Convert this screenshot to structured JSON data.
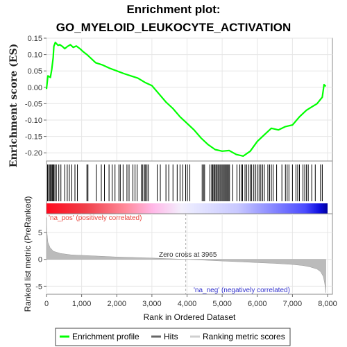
{
  "chart_data": {
    "type": "line",
    "title_line1": "Enrichment plot:",
    "title_line2": "GO_MYELOID_LEUKOCYTE_ACTIVATION",
    "xlabel": "Rank in Ordered Dataset",
    "ylabel_top": "Enrichment score (ES)",
    "ylabel_bottom": "Ranked list metric (PreRanked)",
    "xlim": [
      0,
      8000
    ],
    "ylim_top": [
      -0.225,
      0.15
    ],
    "ylim_bottom": [
      -6.5,
      8.5
    ],
    "x_ticks": [
      "0",
      "1,000",
      "2,000",
      "3,000",
      "4,000",
      "5,000",
      "6,000",
      "7,000",
      "8,000"
    ],
    "x_tick_values": [
      0,
      1000,
      2000,
      3000,
      4000,
      5000,
      6000,
      7000,
      8000
    ],
    "y_ticks_top": [
      "0.15",
      "0.10",
      "0.05",
      "0.00",
      "-0.05",
      "-0.10",
      "-0.15",
      "-0.20"
    ],
    "y_tick_values_top": [
      0.15,
      0.1,
      0.05,
      0.0,
      -0.05,
      -0.1,
      -0.15,
      -0.2
    ],
    "y_ticks_bottom": [
      "5",
      "0",
      "-5"
    ],
    "y_tick_values_bottom": [
      5,
      0,
      -5
    ],
    "pos_label": "'na_pos' (positively correlated)",
    "neg_label": "'na_neg' (negatively correlated)",
    "zero_cross_label": "Zero cross at 3965",
    "zero_cross": 3965,
    "colors": {
      "enrichment": "#00ff00",
      "hits": "#000000",
      "metric": "#bbbbbb",
      "pos_text": "#e8473f",
      "neg_text": "#3333cc"
    },
    "series": [
      {
        "name": "Enrichment profile",
        "points": [
          [
            0,
            -0.005
          ],
          [
            40,
            0.035
          ],
          [
            110,
            0.03
          ],
          [
            150,
            0.055
          ],
          [
            190,
            0.09
          ],
          [
            210,
            0.125
          ],
          [
            250,
            0.137
          ],
          [
            330,
            0.128
          ],
          [
            380,
            0.13
          ],
          [
            450,
            0.125
          ],
          [
            520,
            0.118
          ],
          [
            600,
            0.125
          ],
          [
            680,
            0.13
          ],
          [
            760,
            0.122
          ],
          [
            850,
            0.126
          ],
          [
            950,
            0.118
          ],
          [
            1050,
            0.108
          ],
          [
            1150,
            0.1
          ],
          [
            1250,
            0.09
          ],
          [
            1400,
            0.075
          ],
          [
            1600,
            0.068
          ],
          [
            1800,
            0.058
          ],
          [
            2000,
            0.05
          ],
          [
            2200,
            0.042
          ],
          [
            2400,
            0.035
          ],
          [
            2600,
            0.028
          ],
          [
            2800,
            0.015
          ],
          [
            3000,
            0.005
          ],
          [
            3200,
            -0.02
          ],
          [
            3400,
            -0.045
          ],
          [
            3600,
            -0.065
          ],
          [
            3800,
            -0.09
          ],
          [
            4000,
            -0.11
          ],
          [
            4200,
            -0.13
          ],
          [
            4400,
            -0.155
          ],
          [
            4600,
            -0.175
          ],
          [
            4800,
            -0.19
          ],
          [
            5000,
            -0.195
          ],
          [
            5200,
            -0.193
          ],
          [
            5400,
            -0.205
          ],
          [
            5600,
            -0.21
          ],
          [
            5800,
            -0.195
          ],
          [
            6000,
            -0.165
          ],
          [
            6200,
            -0.145
          ],
          [
            6400,
            -0.125
          ],
          [
            6600,
            -0.13
          ],
          [
            6800,
            -0.12
          ],
          [
            7000,
            -0.115
          ],
          [
            7200,
            -0.09
          ],
          [
            7400,
            -0.07
          ],
          [
            7550,
            -0.06
          ],
          [
            7700,
            -0.05
          ],
          [
            7850,
            -0.03
          ],
          [
            7900,
            0.008
          ],
          [
            7950,
            0.003
          ]
        ]
      },
      {
        "name": "Hits",
        "hits": [
          30,
          60,
          95,
          120,
          140,
          170,
          195,
          210,
          240,
          280,
          350,
          410,
          520,
          590,
          650,
          720,
          810,
          880,
          1150,
          1180,
          1420,
          1560,
          1650,
          1780,
          1870,
          1950,
          2060,
          2100,
          2180,
          2290,
          2350,
          2460,
          2520,
          2580,
          2700,
          2740,
          2790,
          2820,
          2860,
          2900,
          3150,
          3240,
          3400,
          3480,
          3600,
          3720,
          3800,
          3880,
          3960,
          4010,
          4080,
          4430,
          4470,
          4500,
          4650,
          4700,
          4730,
          4760,
          4790,
          4820,
          4850,
          4880,
          4910,
          4940,
          4970,
          5000,
          5030,
          5060,
          5090,
          5120,
          5150,
          5180,
          5210,
          5300,
          5420,
          5500,
          5540,
          5580,
          5650,
          5700,
          5760,
          5800,
          5840,
          5900,
          5950,
          6000,
          6050,
          6100,
          6150,
          6200,
          6300,
          6350,
          6400,
          6450,
          6550,
          6700,
          6800,
          6850,
          6900,
          7000,
          7100,
          7150,
          7200,
          7300,
          7350,
          7400,
          7450,
          7550,
          7650,
          7800,
          7850
        ]
      },
      {
        "name": "Ranking metric scores",
        "profile": [
          [
            0,
            7.8
          ],
          [
            10,
            5.2
          ],
          [
            40,
            3.2
          ],
          [
            100,
            2.2
          ],
          [
            200,
            1.5
          ],
          [
            400,
            1.1
          ],
          [
            700,
            0.85
          ],
          [
            1000,
            0.75
          ],
          [
            1500,
            0.6
          ],
          [
            2000,
            0.45
          ],
          [
            2500,
            0.35
          ],
          [
            3000,
            0.25
          ],
          [
            3500,
            0.12
          ],
          [
            3965,
            0.0
          ],
          [
            4500,
            -0.15
          ],
          [
            5000,
            -0.3
          ],
          [
            5500,
            -0.45
          ],
          [
            6000,
            -0.6
          ],
          [
            6500,
            -0.75
          ],
          [
            7000,
            -0.95
          ],
          [
            7300,
            -1.15
          ],
          [
            7500,
            -1.4
          ],
          [
            7700,
            -1.8
          ],
          [
            7800,
            -2.3
          ],
          [
            7880,
            -3.2
          ],
          [
            7920,
            -4.5
          ],
          [
            7950,
            -6.2
          ]
        ]
      }
    ],
    "legend": [
      "Enrichment profile",
      "Hits",
      "Ranking metric scores"
    ],
    "legend_position": "bottom"
  }
}
